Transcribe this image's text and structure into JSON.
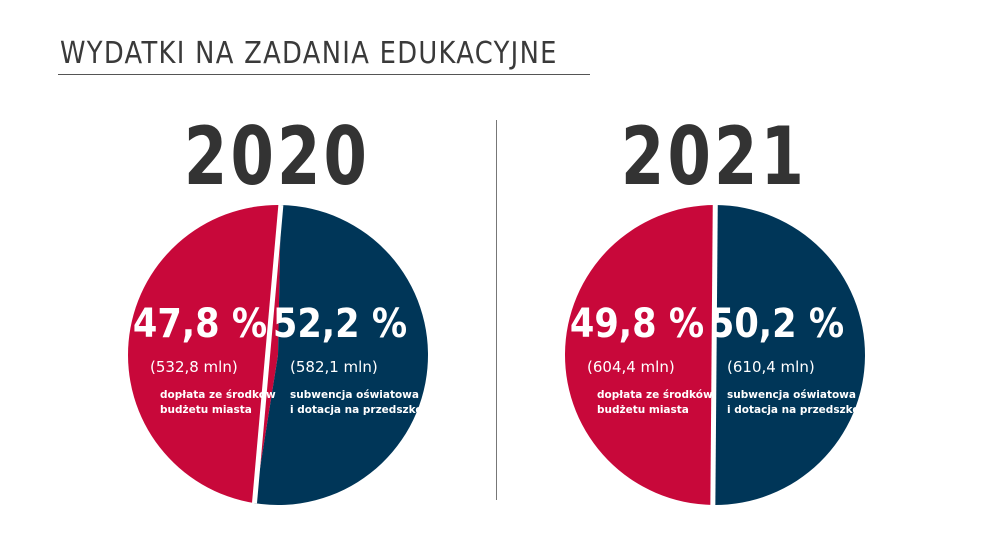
{
  "title": "WYDATKI NA ZADANIA EDUKACYJNE",
  "colors": {
    "red": "#C8083A",
    "navy": "#003658",
    "text": "#3a3a3a"
  },
  "chart_data": [
    {
      "type": "pie",
      "year": "2020",
      "slices": [
        {
          "value": 47.8,
          "percent_label": "47,8 %",
          "amount_label": "(532,8 mln)",
          "description": [
            "dopłata ze środków",
            "budżetu miasta"
          ],
          "color": "#C8083A"
        },
        {
          "value": 52.2,
          "percent_label": "52,2 %",
          "amount_label": "(582,1 mln)",
          "description": [
            "subwencja oświatowa",
            "i dotacja na przedszkola"
          ],
          "color": "#003658"
        }
      ]
    },
    {
      "type": "pie",
      "year": "2021",
      "slices": [
        {
          "value": 49.8,
          "percent_label": "49,8 %",
          "amount_label": "(604,4 mln)",
          "description": [
            "dopłata ze środków",
            "budżetu miasta"
          ],
          "color": "#C8083A"
        },
        {
          "value": 50.2,
          "percent_label": "50,2 %",
          "amount_label": "(610,4 mln)",
          "description": [
            "subwencja oświatowa",
            "i dotacja na przedszkola"
          ],
          "color": "#003658"
        }
      ]
    }
  ]
}
